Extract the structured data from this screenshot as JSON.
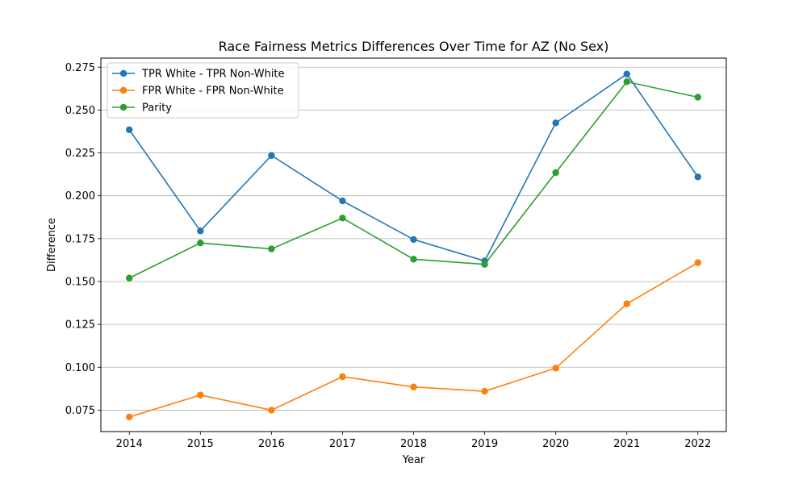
{
  "chart_data": {
    "type": "line",
    "title": "Race Fairness Metrics Differences Over Time for AZ (No Sex)",
    "xlabel": "Year",
    "ylabel": "Difference",
    "x": [
      2014,
      2015,
      2016,
      2017,
      2018,
      2019,
      2020,
      2021,
      2022
    ],
    "xlim": [
      2013.6,
      2022.4
    ],
    "ylim": [
      0.0625,
      0.2803
    ],
    "yticks": [
      "0.075",
      "0.100",
      "0.125",
      "0.150",
      "0.175",
      "0.200",
      "0.225",
      "0.250",
      "0.275"
    ],
    "xticks": [
      "2014",
      "2015",
      "2016",
      "2017",
      "2018",
      "2019",
      "2020",
      "2021",
      "2022"
    ],
    "grid": "horizontal",
    "legend_position": "top-left",
    "series": [
      {
        "name": "TPR White - TPR Non-White",
        "color": "#1f77b4",
        "values": [
          0.2385,
          0.1795,
          0.2235,
          0.197,
          0.1745,
          0.162,
          0.2425,
          0.271,
          0.211
        ]
      },
      {
        "name": "FPR White - FPR Non-White",
        "color": "#ff7f0e",
        "values": [
          0.071,
          0.0838,
          0.075,
          0.0945,
          0.0885,
          0.086,
          0.0995,
          0.137,
          0.161
        ]
      },
      {
        "name": "Parity",
        "color": "#2ca02c",
        "values": [
          0.152,
          0.1725,
          0.169,
          0.187,
          0.163,
          0.16,
          0.2135,
          0.2665,
          0.2575
        ]
      }
    ]
  }
}
